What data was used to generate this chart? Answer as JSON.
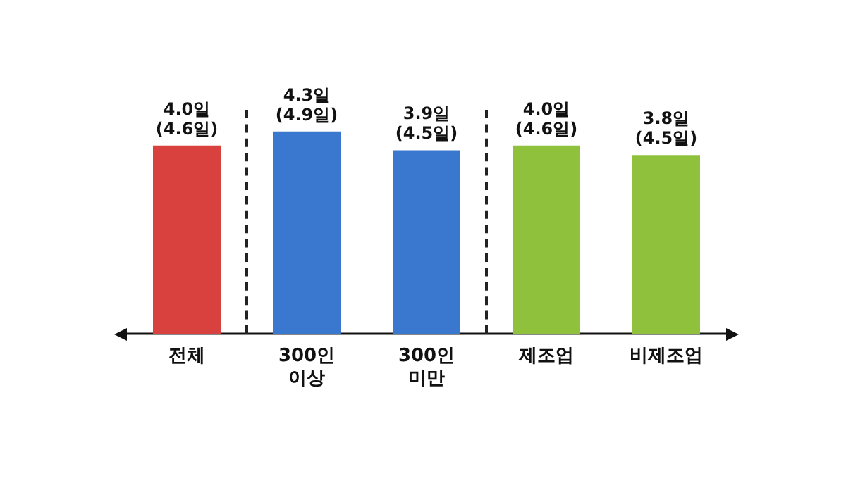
{
  "chart_data": {
    "type": "bar",
    "categories": [
      "전체",
      "300인\n이상",
      "300인\n미만",
      "제조업",
      "비제조업"
    ],
    "values": [
      4.0,
      4.3,
      3.9,
      4.0,
      3.8
    ],
    "colors": [
      "#d9413f",
      "#3a78d0",
      "#3a78d0",
      "#8fc13c",
      "#8fc13c"
    ],
    "value_labels": [
      "4.0일\n(4.6일)",
      "4.3일\n(4.9일)",
      "3.9일\n(4.5일)",
      "4.0일\n(4.6일)",
      "3.8일\n(4.5일)"
    ],
    "tick_labels": "x"
  }
}
